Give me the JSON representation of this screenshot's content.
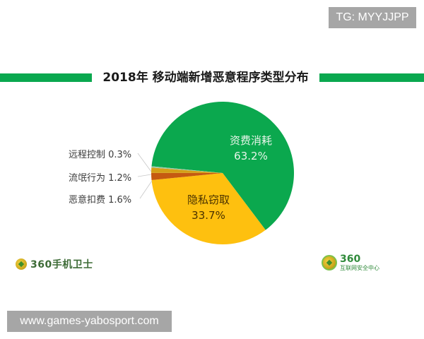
{
  "watermark_top": "TG: MYYJJPP",
  "watermark_bottom": "www.games-yabosport.com",
  "header": {
    "title": "2018年 移动端新增恶意程序类型分布",
    "bar_color": "#0aa84f"
  },
  "logos": {
    "left_text": "360手机卫士",
    "right_number": "360",
    "right_subtitle": "互联网安全中心"
  },
  "chart_data": {
    "type": "pie",
    "title": "2018年 移动端新增恶意程序类型分布",
    "categories": [
      "资费消耗",
      "隐私窃取",
      "恶意扣费",
      "流氓行为",
      "远程控制"
    ],
    "values": [
      63.2,
      33.7,
      1.6,
      1.2,
      0.3
    ],
    "unit": "%",
    "colors": [
      "#0ba84e",
      "#fec00f",
      "#c55a11",
      "#d4a017",
      "#9ec9a8"
    ],
    "labels": [
      {
        "name": "资费消耗",
        "value": "63.2%",
        "position": "inside"
      },
      {
        "name": "隐私窃取",
        "value": "33.7%",
        "position": "inside"
      },
      {
        "name": "恶意扣费",
        "value": "1.6%",
        "position": "outside"
      },
      {
        "name": "流氓行为",
        "value": "1.2%",
        "position": "outside"
      },
      {
        "name": "远程控制",
        "value": "0.3%",
        "position": "outside"
      }
    ],
    "legend": "none"
  },
  "labels_display": {
    "green_name": "资费消耗",
    "green_value": "63.2%",
    "yellow_name": "隐私窃取",
    "yellow_value": "33.7%",
    "remote_control": "远程控制 0.3%",
    "rogue": "流氓行为 1.2%",
    "fee_deduction": "恶意扣费 1.6%"
  }
}
